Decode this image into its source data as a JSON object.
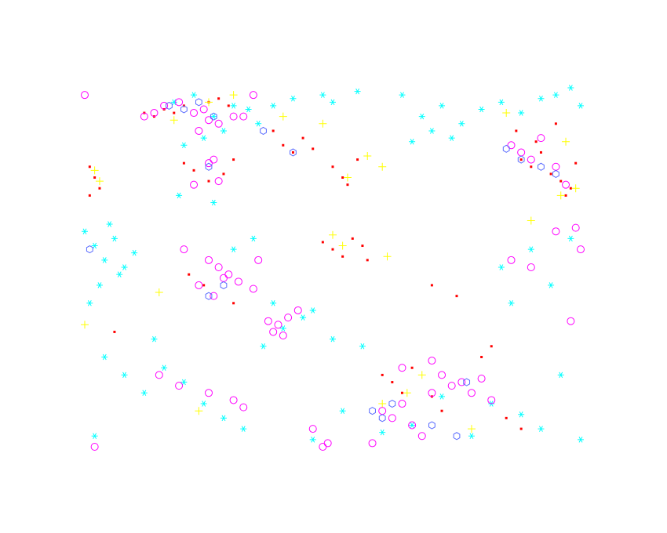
{
  "chart_data": {
    "type": "scatter",
    "xlim": [
      0,
      100
    ],
    "ylim": [
      0,
      100
    ],
    "axis_visible": false,
    "series": [
      {
        "color": "#ff0000",
        "marker": "square",
        "x": [
          12,
          14,
          16,
          18,
          20,
          25,
          27,
          29,
          1,
          2,
          3,
          1,
          20,
          22,
          25,
          28,
          30,
          38,
          40,
          42,
          44,
          46,
          50,
          52,
          53,
          55,
          48,
          50,
          52,
          54,
          56,
          57,
          21,
          24,
          30,
          60,
          62,
          64,
          66,
          70,
          72,
          88,
          90,
          92,
          94,
          96,
          98,
          99,
          87,
          91,
          95,
          97,
          80,
          82,
          85,
          88,
          70,
          75,
          6
        ],
        "values": [
          93,
          92,
          94,
          93,
          95,
          96,
          97,
          95,
          78,
          75,
          72,
          70,
          79,
          77,
          74,
          76,
          80,
          88,
          84,
          82,
          86,
          83,
          78,
          75,
          73,
          80,
          57,
          55,
          53,
          58,
          56,
          52,
          48,
          45,
          40,
          20,
          18,
          15,
          22,
          14,
          10,
          80,
          78,
          82,
          76,
          74,
          72,
          79,
          88,
          85,
          90,
          70,
          25,
          28,
          8,
          5,
          45,
          42,
          32
        ]
      },
      {
        "color": "#ffff00",
        "marker": "plus",
        "x": [
          18,
          25,
          30,
          2,
          3,
          40,
          48,
          53,
          57,
          60,
          50,
          52,
          61,
          85,
          97,
          99,
          0,
          15,
          23,
          60,
          65,
          68,
          90,
          78,
          96
        ],
        "values": [
          91,
          96,
          98,
          77,
          74,
          92,
          90,
          75,
          81,
          78,
          59,
          56,
          53,
          93,
          85,
          72,
          34,
          43,
          10,
          12,
          15,
          20,
          63,
          5,
          70
        ]
      },
      {
        "color": "#00ffff",
        "marker": "star",
        "x": [
          18,
          22,
          26,
          30,
          33,
          35,
          20,
          24,
          28,
          19,
          26,
          38,
          42,
          48,
          50,
          55,
          64,
          68,
          72,
          76,
          80,
          84,
          88,
          92,
          95,
          98,
          100,
          70,
          66,
          74,
          0,
          2,
          4,
          6,
          8,
          10,
          3,
          7,
          1,
          5,
          30,
          34,
          38,
          44,
          50,
          56,
          40,
          46,
          4,
          8,
          12,
          16,
          20,
          24,
          28,
          32,
          36,
          46,
          52,
          60,
          66,
          72,
          78,
          82,
          88,
          92,
          96,
          100,
          84,
          90,
          94,
          98,
          86,
          2,
          14
        ],
        "values": [
          96,
          98,
          92,
          95,
          94,
          90,
          84,
          86,
          88,
          70,
          68,
          95,
          97,
          98,
          96,
          99,
          98,
          92,
          95,
          90,
          94,
          96,
          93,
          97,
          98,
          100,
          95,
          88,
          85,
          86,
          60,
          56,
          52,
          58,
          50,
          54,
          45,
          48,
          40,
          62,
          55,
          58,
          40,
          36,
          30,
          28,
          33,
          38,
          25,
          20,
          15,
          22,
          18,
          12,
          8,
          5,
          28,
          2,
          10,
          4,
          6,
          14,
          3,
          12,
          9,
          5,
          20,
          2,
          50,
          55,
          45,
          58,
          40,
          3,
          30
        ]
      },
      {
        "color": "#ff00ff",
        "marker": "circle",
        "x": [
          0,
          12,
          14,
          16,
          19,
          22,
          24,
          25,
          27,
          30,
          32,
          34,
          26,
          25,
          27,
          22,
          23,
          20,
          25,
          27,
          29,
          31,
          34,
          35,
          23,
          26,
          28,
          37,
          39,
          41,
          43,
          38,
          40,
          46,
          48,
          58,
          60,
          62,
          64,
          66,
          68,
          70,
          72,
          74,
          76,
          78,
          80,
          64,
          70,
          82,
          86,
          88,
          90,
          92,
          95,
          97,
          99,
          100,
          86,
          90,
          98,
          95,
          2,
          15,
          19,
          25,
          30,
          32,
          49
        ],
        "values": [
          98,
          92,
          93,
          95,
          96,
          93,
          94,
          91,
          90,
          92,
          92,
          98,
          80,
          79,
          74,
          73,
          88,
          55,
          52,
          50,
          48,
          46,
          44,
          52,
          45,
          42,
          47,
          35,
          34,
          36,
          38,
          32,
          31,
          5,
          0,
          1,
          10,
          8,
          12,
          6,
          3,
          15,
          20,
          17,
          18,
          15,
          19,
          22,
          24,
          13,
          84,
          82,
          80,
          86,
          78,
          73,
          61,
          55,
          52,
          50,
          35,
          60,
          0,
          20,
          17,
          15,
          13,
          11,
          1
        ]
      },
      {
        "color": "#5a6cff",
        "marker": "hexagon",
        "x": [
          17,
          20,
          23,
          26,
          25,
          36,
          42,
          58,
          60,
          62,
          70,
          77,
          85,
          88,
          92,
          95,
          1,
          25,
          28,
          75
        ],
        "values": [
          95,
          94,
          96,
          92,
          78,
          88,
          82,
          10,
          8,
          12,
          6,
          18,
          83,
          80,
          78,
          76,
          55,
          42,
          45,
          3
        ]
      }
    ]
  }
}
